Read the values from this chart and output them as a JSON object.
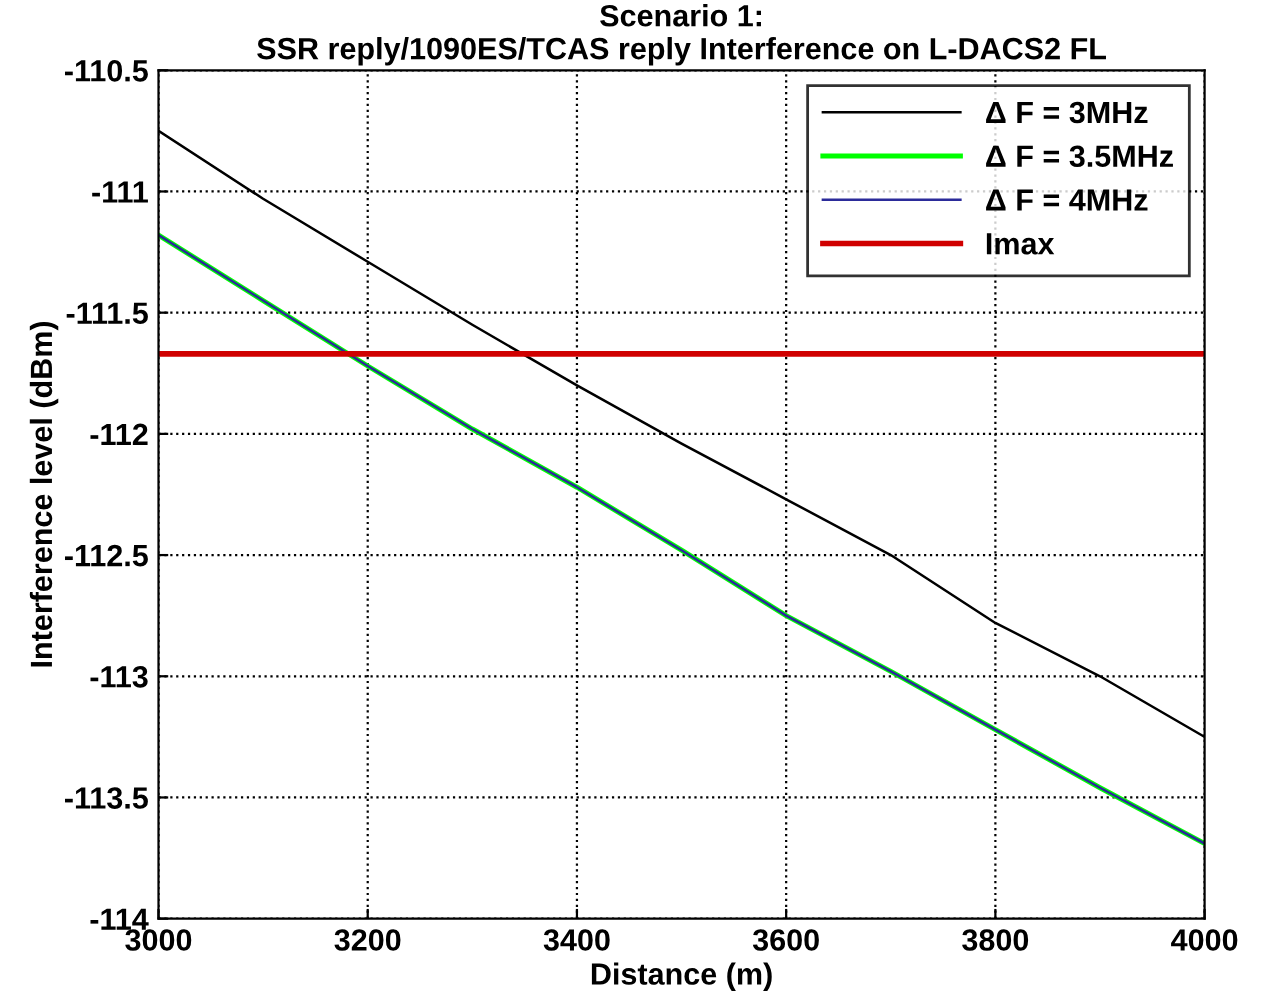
{
  "chart_data": {
    "type": "line",
    "title": "Scenario 1:\nSSR reply/1090ES/TCAS reply Interference on L-DACS2 FL",
    "xlabel": "Distance (m)",
    "ylabel": "Interference level (dBm)",
    "x": [
      3000,
      3100,
      3200,
      3300,
      3400,
      3500,
      3600,
      3700,
      3800,
      3900,
      4000
    ],
    "series": [
      {
        "name": "Δ F = 3MHz",
        "color": "#000000",
        "values": [
          -110.75,
          -111.03,
          -111.29,
          -111.55,
          -111.8,
          -112.04,
          -112.27,
          -112.5,
          -112.78,
          -113.0,
          -113.25
        ]
      },
      {
        "name": "Δ F = 3.5MHz",
        "color": "#00ff00",
        "values": [
          -111.18,
          -111.45,
          -111.72,
          -111.98,
          -112.22,
          -112.48,
          -112.75,
          -112.98,
          -113.22,
          -113.46,
          -113.69
        ]
      },
      {
        "name": "Δ F = 4MHz",
        "color": "#2b2b9a",
        "values": [
          -111.18,
          -111.45,
          -111.72,
          -111.98,
          -112.22,
          -112.48,
          -112.75,
          -112.98,
          -113.22,
          -113.46,
          -113.69
        ]
      },
      {
        "name": "Imax",
        "color": "#d00000",
        "values": [
          -111.67,
          -111.67,
          -111.67,
          -111.67,
          -111.67,
          -111.67,
          -111.67,
          -111.67,
          -111.67,
          -111.67,
          -111.67
        ]
      }
    ],
    "xlim": [
      3000,
      4000
    ],
    "xticks": [
      3000,
      3200,
      3400,
      3600,
      3800,
      4000
    ],
    "ylim": [
      -114,
      -110.5
    ],
    "yticks": [
      -114,
      -113.5,
      -113,
      -112.5,
      -112,
      -111.5,
      -111,
      -110.5
    ],
    "grid": true,
    "legend": "top right",
    "line_style": "solid",
    "marker": "none"
  }
}
